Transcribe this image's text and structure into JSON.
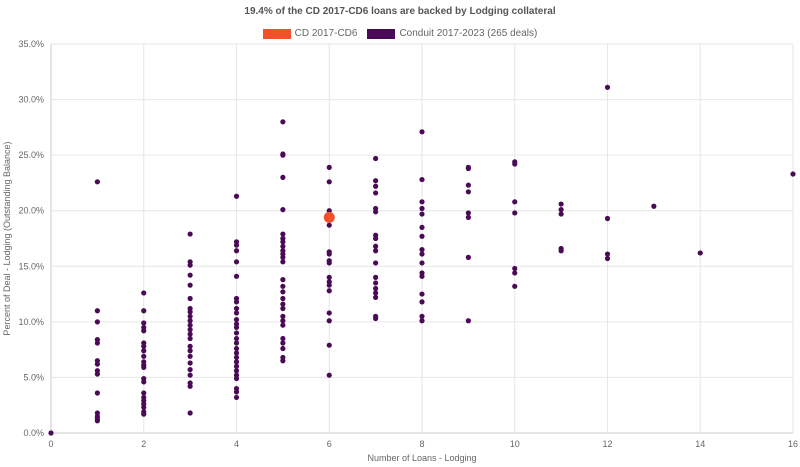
{
  "chart_data": {
    "type": "scatter",
    "title": "19.4% of the CD 2017-CD6 loans are backed by Lodging collateral",
    "xlabel": "Number of Loans - Lodging",
    "ylabel": "Percent of Deal - Lodging (Outstanding Balance)",
    "xlim": [
      0,
      16
    ],
    "ylim": [
      0,
      35
    ],
    "x_ticks": [
      0,
      2,
      4,
      6,
      8,
      10,
      12,
      14,
      16
    ],
    "y_ticks": [
      0,
      5,
      10,
      15,
      20,
      25,
      30,
      35
    ],
    "x_tick_labels": [
      "0",
      "2",
      "4",
      "6",
      "8",
      "10",
      "12",
      "14",
      "16"
    ],
    "y_tick_labels": [
      "0.0%",
      "5.0%",
      "10.0%",
      "15.0%",
      "20.0%",
      "25.0%",
      "30.0%",
      "35.0%"
    ],
    "grid": true,
    "legend_position": "top-center",
    "series": [
      {
        "name": "CD 2017-CD6",
        "color": "#f4502a",
        "points": [
          [
            6,
            19.4
          ]
        ]
      },
      {
        "name": "Conduit 2017-2023 (265 deals)",
        "color": "#4a0a55",
        "points": [
          [
            0,
            0.0
          ],
          [
            1,
            22.6
          ],
          [
            1,
            11.0
          ],
          [
            1,
            10.0
          ],
          [
            1,
            8.4
          ],
          [
            1,
            8.1
          ],
          [
            1,
            6.5
          ],
          [
            1,
            6.2
          ],
          [
            1,
            5.6
          ],
          [
            1,
            5.3
          ],
          [
            1,
            3.6
          ],
          [
            1,
            1.8
          ],
          [
            1,
            1.5
          ],
          [
            1,
            1.3
          ],
          [
            1,
            1.1
          ],
          [
            2,
            12.6
          ],
          [
            2,
            11.0
          ],
          [
            2,
            9.9
          ],
          [
            2,
            9.5
          ],
          [
            2,
            9.2
          ],
          [
            2,
            8.1
          ],
          [
            2,
            7.8
          ],
          [
            2,
            7.4
          ],
          [
            2,
            6.9
          ],
          [
            2,
            6.4
          ],
          [
            2,
            6.1
          ],
          [
            2,
            5.9
          ],
          [
            2,
            4.9
          ],
          [
            2,
            4.6
          ],
          [
            2,
            3.6
          ],
          [
            2,
            3.2
          ],
          [
            2,
            2.9
          ],
          [
            2,
            2.6
          ],
          [
            2,
            2.3
          ],
          [
            2,
            1.9
          ],
          [
            2,
            1.7
          ],
          [
            3,
            17.9
          ],
          [
            3,
            15.4
          ],
          [
            3,
            15.1
          ],
          [
            3,
            14.2
          ],
          [
            3,
            13.3
          ],
          [
            3,
            12.1
          ],
          [
            3,
            11.2
          ],
          [
            3,
            10.9
          ],
          [
            3,
            10.5
          ],
          [
            3,
            10.1
          ],
          [
            3,
            9.7
          ],
          [
            3,
            9.3
          ],
          [
            3,
            8.9
          ],
          [
            3,
            8.5
          ],
          [
            3,
            7.8
          ],
          [
            3,
            7.4
          ],
          [
            3,
            6.9
          ],
          [
            3,
            6.3
          ],
          [
            3,
            5.7
          ],
          [
            3,
            5.2
          ],
          [
            3,
            4.5
          ],
          [
            3,
            4.2
          ],
          [
            3,
            1.8
          ],
          [
            4,
            21.3
          ],
          [
            4,
            17.2
          ],
          [
            4,
            16.9
          ],
          [
            4,
            16.4
          ],
          [
            4,
            15.4
          ],
          [
            4,
            14.1
          ],
          [
            4,
            12.1
          ],
          [
            4,
            11.8
          ],
          [
            4,
            11.2
          ],
          [
            4,
            10.8
          ],
          [
            4,
            10.2
          ],
          [
            4,
            9.8
          ],
          [
            4,
            9.5
          ],
          [
            4,
            9.0
          ],
          [
            4,
            8.5
          ],
          [
            4,
            8.1
          ],
          [
            4,
            7.6
          ],
          [
            4,
            7.2
          ],
          [
            4,
            6.8
          ],
          [
            4,
            6.4
          ],
          [
            4,
            6.0
          ],
          [
            4,
            5.6
          ],
          [
            4,
            5.2
          ],
          [
            4,
            4.9
          ],
          [
            4,
            4.0
          ],
          [
            4,
            3.7
          ],
          [
            4,
            3.2
          ],
          [
            5,
            28.0
          ],
          [
            5,
            25.1
          ],
          [
            5,
            25.0
          ],
          [
            5,
            23.0
          ],
          [
            5,
            20.1
          ],
          [
            5,
            17.9
          ],
          [
            5,
            17.5
          ],
          [
            5,
            17.2
          ],
          [
            5,
            16.8
          ],
          [
            5,
            16.4
          ],
          [
            5,
            16.1
          ],
          [
            5,
            15.8
          ],
          [
            5,
            15.4
          ],
          [
            5,
            13.8
          ],
          [
            5,
            13.2
          ],
          [
            5,
            12.7
          ],
          [
            5,
            12.1
          ],
          [
            5,
            11.6
          ],
          [
            5,
            11.2
          ],
          [
            5,
            10.5
          ],
          [
            5,
            10.1
          ],
          [
            5,
            9.7
          ],
          [
            5,
            8.5
          ],
          [
            5,
            8.1
          ],
          [
            5,
            7.6
          ],
          [
            5,
            6.8
          ],
          [
            5,
            6.5
          ],
          [
            6,
            23.9
          ],
          [
            6,
            22.6
          ],
          [
            6,
            20.0
          ],
          [
            6,
            18.7
          ],
          [
            6,
            16.3
          ],
          [
            6,
            16.1
          ],
          [
            6,
            15.5
          ],
          [
            6,
            15.3
          ],
          [
            6,
            14.0
          ],
          [
            6,
            13.6
          ],
          [
            6,
            13.3
          ],
          [
            6,
            12.8
          ],
          [
            6,
            10.8
          ],
          [
            6,
            10.1
          ],
          [
            6,
            7.9
          ],
          [
            6,
            5.2
          ],
          [
            7,
            24.7
          ],
          [
            7,
            22.7
          ],
          [
            7,
            22.2
          ],
          [
            7,
            21.6
          ],
          [
            7,
            20.2
          ],
          [
            7,
            19.9
          ],
          [
            7,
            17.8
          ],
          [
            7,
            17.5
          ],
          [
            7,
            16.8
          ],
          [
            7,
            16.4
          ],
          [
            7,
            15.3
          ],
          [
            7,
            14.0
          ],
          [
            7,
            13.5
          ],
          [
            7,
            13.0
          ],
          [
            7,
            12.6
          ],
          [
            7,
            12.2
          ],
          [
            7,
            10.5
          ],
          [
            7,
            10.3
          ],
          [
            8,
            27.1
          ],
          [
            8,
            22.8
          ],
          [
            8,
            20.8
          ],
          [
            8,
            20.2
          ],
          [
            8,
            19.7
          ],
          [
            8,
            18.5
          ],
          [
            8,
            17.7
          ],
          [
            8,
            16.5
          ],
          [
            8,
            16.1
          ],
          [
            8,
            15.3
          ],
          [
            8,
            14.4
          ],
          [
            8,
            14.1
          ],
          [
            8,
            12.5
          ],
          [
            8,
            11.8
          ],
          [
            8,
            10.5
          ],
          [
            8,
            10.1
          ],
          [
            9,
            23.9
          ],
          [
            9,
            23.8
          ],
          [
            9,
            22.3
          ],
          [
            9,
            21.7
          ],
          [
            9,
            19.8
          ],
          [
            9,
            19.4
          ],
          [
            9,
            15.8
          ],
          [
            9,
            10.1
          ],
          [
            10,
            24.4
          ],
          [
            10,
            24.2
          ],
          [
            10,
            20.8
          ],
          [
            10,
            19.8
          ],
          [
            10,
            14.8
          ],
          [
            10,
            14.4
          ],
          [
            10,
            13.2
          ],
          [
            11,
            20.6
          ],
          [
            11,
            20.1
          ],
          [
            11,
            19.7
          ],
          [
            11,
            16.6
          ],
          [
            11,
            16.4
          ],
          [
            12,
            31.1
          ],
          [
            12,
            19.3
          ],
          [
            12,
            16.1
          ],
          [
            12,
            15.7
          ],
          [
            13,
            20.4
          ],
          [
            14,
            16.2
          ],
          [
            16,
            23.3
          ]
        ]
      }
    ]
  }
}
